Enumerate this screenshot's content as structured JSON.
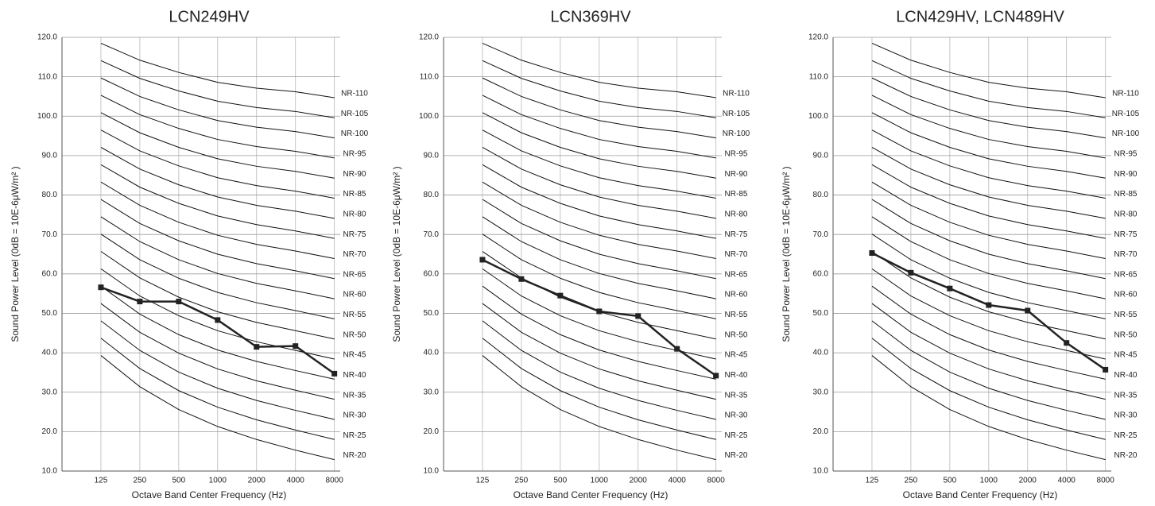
{
  "chart_data": [
    {
      "type": "line",
      "title": "LCN249HV",
      "x_label": "Octave Band Center Frequency (Hz)",
      "y_label": "Sound Power Level (0dB  = 10E-6μW/m² )",
      "categories": [
        "125",
        "250",
        "500",
        "1000",
        "2000",
        "4000",
        "8000"
      ],
      "values": [
        56.6,
        53,
        53,
        48.3,
        41.5,
        41.7,
        34.7
      ],
      "color": "#222222",
      "ylim": [
        10,
        120
      ],
      "yticks": [
        {
          "value": 10,
          "label": "10.0"
        },
        {
          "value": 20,
          "label": "20.0"
        },
        {
          "value": 30,
          "label": "30.0"
        },
        {
          "value": 40,
          "label": "40.0"
        },
        {
          "value": 50,
          "label": "50.0"
        },
        {
          "value": 60,
          "label": "60.0"
        },
        {
          "value": 70,
          "label": "70.0"
        },
        {
          "value": 80,
          "label": "80.0"
        },
        {
          "value": 90,
          "label": "90.0"
        },
        {
          "value": 100,
          "label": "100.0"
        },
        {
          "value": 110,
          "label": "110.0"
        },
        {
          "value": 120,
          "label": "120.0"
        }
      ],
      "grid": true,
      "series": [
        {
          "name": "NR-20",
          "color": "#111111",
          "values": [
            39.3,
            31.4,
            25.6,
            21.3,
            18,
            15.3,
            12.9
          ]
        },
        {
          "name": "NR-25",
          "color": "#111111",
          "values": [
            43.7,
            36,
            30.4,
            26.2,
            23,
            20.4,
            18
          ]
        },
        {
          "name": "NR-30",
          "color": "#111111",
          "values": [
            48.1,
            40.6,
            35.1,
            31,
            27.9,
            25.4,
            23.1
          ]
        },
        {
          "name": "NR-35",
          "color": "#111111",
          "values": [
            52.5,
            45.2,
            39.9,
            35.9,
            32.9,
            30.5,
            28.2
          ]
        },
        {
          "name": "NR-40",
          "color": "#111111",
          "values": [
            56.9,
            49.8,
            44.6,
            40.7,
            37.8,
            35.5,
            33.3
          ]
        },
        {
          "name": "NR-45",
          "color": "#111111",
          "values": [
            61.3,
            54.4,
            49.4,
            45.6,
            42.8,
            40.6,
            38.4
          ]
        },
        {
          "name": "NR-50",
          "color": "#111111",
          "values": [
            65.7,
            59,
            54.1,
            50.4,
            47.7,
            45.6,
            43.5
          ]
        },
        {
          "name": "NR-55",
          "color": "#111111",
          "values": [
            70.1,
            63.6,
            58.9,
            55.3,
            52.7,
            50.7,
            48.6
          ]
        },
        {
          "name": "NR-60",
          "color": "#111111",
          "values": [
            74.5,
            68.2,
            63.6,
            60.1,
            57.6,
            55.7,
            53.7
          ]
        },
        {
          "name": "NR-65",
          "color": "#111111",
          "values": [
            78.9,
            72.8,
            68.4,
            65,
            62.6,
            60.8,
            58.8
          ]
        },
        {
          "name": "NR-70",
          "color": "#111111",
          "values": [
            83.3,
            77.4,
            73.1,
            69.8,
            67.5,
            65.8,
            63.9
          ]
        },
        {
          "name": "NR-75",
          "color": "#111111",
          "values": [
            87.7,
            82,
            77.9,
            74.7,
            72.5,
            70.9,
            69
          ]
        },
        {
          "name": "NR-80",
          "color": "#111111",
          "values": [
            92.1,
            86.6,
            82.6,
            79.5,
            77.4,
            75.9,
            74.1
          ]
        },
        {
          "name": "NR-85",
          "color": "#111111",
          "values": [
            96.5,
            91.2,
            87.4,
            84.4,
            82.4,
            81,
            79.2
          ]
        },
        {
          "name": "NR-90",
          "color": "#111111",
          "values": [
            100.9,
            95.8,
            92.1,
            89.2,
            87.3,
            86,
            84.3
          ]
        },
        {
          "name": "NR-95",
          "color": "#111111",
          "values": [
            105.3,
            100.4,
            96.9,
            94.1,
            92.3,
            91.1,
            89.4
          ]
        },
        {
          "name": "NR-100",
          "color": "#111111",
          "values": [
            109.7,
            105,
            101.6,
            98.9,
            97.2,
            96.1,
            94.5
          ]
        },
        {
          "name": "NR-105",
          "color": "#111111",
          "values": [
            114.1,
            109.6,
            106.4,
            103.8,
            102.2,
            101.2,
            99.6
          ]
        },
        {
          "name": "NR-110",
          "color": "#111111",
          "values": [
            118.5,
            114.2,
            111.1,
            108.6,
            107.1,
            106.2,
            104.7
          ]
        }
      ]
    },
    {
      "type": "line",
      "title": "LCN369HV",
      "x_label": "Octave Band Center Frequency (Hz)",
      "y_label": "Sound Power Level (0dB  = 10E-6μW/m² )",
      "categories": [
        "125",
        "250",
        "500",
        "1000",
        "2000",
        "4000",
        "8000"
      ],
      "values": [
        63.6,
        58.7,
        54.5,
        50.5,
        49.3,
        41,
        34.2
      ],
      "color": "#222222",
      "ylim": [
        10,
        120
      ],
      "yticks": [
        {
          "value": 10,
          "label": "10.0"
        },
        {
          "value": 20,
          "label": "20.0"
        },
        {
          "value": 30,
          "label": "30.0"
        },
        {
          "value": 40,
          "label": "40.0"
        },
        {
          "value": 50,
          "label": "50.0"
        },
        {
          "value": 60,
          "label": "60.0"
        },
        {
          "value": 70,
          "label": "70.0"
        },
        {
          "value": 80,
          "label": "80.0"
        },
        {
          "value": 90,
          "label": "90.0"
        },
        {
          "value": 100,
          "label": "100.0"
        },
        {
          "value": 110,
          "label": "110.0"
        },
        {
          "value": 120,
          "label": "120.0"
        }
      ],
      "grid": true,
      "series": [
        {
          "name": "NR-20",
          "color": "#111111",
          "values": [
            39.3,
            31.4,
            25.6,
            21.3,
            18,
            15.3,
            12.9
          ]
        },
        {
          "name": "NR-25",
          "color": "#111111",
          "values": [
            43.7,
            36,
            30.4,
            26.2,
            23,
            20.4,
            18
          ]
        },
        {
          "name": "NR-30",
          "color": "#111111",
          "values": [
            48.1,
            40.6,
            35.1,
            31,
            27.9,
            25.4,
            23.1
          ]
        },
        {
          "name": "NR-35",
          "color": "#111111",
          "values": [
            52.5,
            45.2,
            39.9,
            35.9,
            32.9,
            30.5,
            28.2
          ]
        },
        {
          "name": "NR-40",
          "color": "#111111",
          "values": [
            56.9,
            49.8,
            44.6,
            40.7,
            37.8,
            35.5,
            33.3
          ]
        },
        {
          "name": "NR-45",
          "color": "#111111",
          "values": [
            61.3,
            54.4,
            49.4,
            45.6,
            42.8,
            40.6,
            38.4
          ]
        },
        {
          "name": "NR-50",
          "color": "#111111",
          "values": [
            65.7,
            59,
            54.1,
            50.4,
            47.7,
            45.6,
            43.5
          ]
        },
        {
          "name": "NR-55",
          "color": "#111111",
          "values": [
            70.1,
            63.6,
            58.9,
            55.3,
            52.7,
            50.7,
            48.6
          ]
        },
        {
          "name": "NR-60",
          "color": "#111111",
          "values": [
            74.5,
            68.2,
            63.6,
            60.1,
            57.6,
            55.7,
            53.7
          ]
        },
        {
          "name": "NR-65",
          "color": "#111111",
          "values": [
            78.9,
            72.8,
            68.4,
            65,
            62.6,
            60.8,
            58.8
          ]
        },
        {
          "name": "NR-70",
          "color": "#111111",
          "values": [
            83.3,
            77.4,
            73.1,
            69.8,
            67.5,
            65.8,
            63.9
          ]
        },
        {
          "name": "NR-75",
          "color": "#111111",
          "values": [
            87.7,
            82,
            77.9,
            74.7,
            72.5,
            70.9,
            69
          ]
        },
        {
          "name": "NR-80",
          "color": "#111111",
          "values": [
            92.1,
            86.6,
            82.6,
            79.5,
            77.4,
            75.9,
            74.1
          ]
        },
        {
          "name": "NR-85",
          "color": "#111111",
          "values": [
            96.5,
            91.2,
            87.4,
            84.4,
            82.4,
            81,
            79.2
          ]
        },
        {
          "name": "NR-90",
          "color": "#111111",
          "values": [
            100.9,
            95.8,
            92.1,
            89.2,
            87.3,
            86,
            84.3
          ]
        },
        {
          "name": "NR-95",
          "color": "#111111",
          "values": [
            105.3,
            100.4,
            96.9,
            94.1,
            92.3,
            91.1,
            89.4
          ]
        },
        {
          "name": "NR-100",
          "color": "#111111",
          "values": [
            109.7,
            105,
            101.6,
            98.9,
            97.2,
            96.1,
            94.5
          ]
        },
        {
          "name": "NR-105",
          "color": "#111111",
          "values": [
            114.1,
            109.6,
            106.4,
            103.8,
            102.2,
            101.2,
            99.6
          ]
        },
        {
          "name": "NR-110",
          "color": "#111111",
          "values": [
            118.5,
            114.2,
            111.1,
            108.6,
            107.1,
            106.2,
            104.7
          ]
        }
      ]
    },
    {
      "type": "line",
      "title": "LCN429HV, LCN489HV",
      "x_label": "Octave Band Center Frequency (Hz)",
      "y_label": "Sound Power Level (0dB  = 10E-6μW/m² )",
      "categories": [
        "125",
        "250",
        "500",
        "1000",
        "2000",
        "4000",
        "8000"
      ],
      "values": [
        65.3,
        60.3,
        56.3,
        52.1,
        50.7,
        42.5,
        35.7
      ],
      "color": "#222222",
      "ylim": [
        10,
        120
      ],
      "yticks": [
        {
          "value": 10,
          "label": "10.0"
        },
        {
          "value": 20,
          "label": "20.0"
        },
        {
          "value": 30,
          "label": "30.0"
        },
        {
          "value": 40,
          "label": "40.0"
        },
        {
          "value": 50,
          "label": "50.0"
        },
        {
          "value": 60,
          "label": "60.0"
        },
        {
          "value": 70,
          "label": "70.0"
        },
        {
          "value": 80,
          "label": "80.0"
        },
        {
          "value": 90,
          "label": "90.0"
        },
        {
          "value": 100,
          "label": "100.0"
        },
        {
          "value": 110,
          "label": "110.0"
        },
        {
          "value": 120,
          "label": "120.0"
        }
      ],
      "grid": true,
      "series": [
        {
          "name": "NR-20",
          "color": "#111111",
          "values": [
            39.3,
            31.4,
            25.6,
            21.3,
            18,
            15.3,
            12.9
          ]
        },
        {
          "name": "NR-25",
          "color": "#111111",
          "values": [
            43.7,
            36,
            30.4,
            26.2,
            23,
            20.4,
            18
          ]
        },
        {
          "name": "NR-30",
          "color": "#111111",
          "values": [
            48.1,
            40.6,
            35.1,
            31,
            27.9,
            25.4,
            23.1
          ]
        },
        {
          "name": "NR-35",
          "color": "#111111",
          "values": [
            52.5,
            45.2,
            39.9,
            35.9,
            32.9,
            30.5,
            28.2
          ]
        },
        {
          "name": "NR-40",
          "color": "#111111",
          "values": [
            56.9,
            49.8,
            44.6,
            40.7,
            37.8,
            35.5,
            33.3
          ]
        },
        {
          "name": "NR-45",
          "color": "#111111",
          "values": [
            61.3,
            54.4,
            49.4,
            45.6,
            42.8,
            40.6,
            38.4
          ]
        },
        {
          "name": "NR-50",
          "color": "#111111",
          "values": [
            65.7,
            59,
            54.1,
            50.4,
            47.7,
            45.6,
            43.5
          ]
        },
        {
          "name": "NR-55",
          "color": "#111111",
          "values": [
            70.1,
            63.6,
            58.9,
            55.3,
            52.7,
            50.7,
            48.6
          ]
        },
        {
          "name": "NR-60",
          "color": "#111111",
          "values": [
            74.5,
            68.2,
            63.6,
            60.1,
            57.6,
            55.7,
            53.7
          ]
        },
        {
          "name": "NR-65",
          "color": "#111111",
          "values": [
            78.9,
            72.8,
            68.4,
            65,
            62.6,
            60.8,
            58.8
          ]
        },
        {
          "name": "NR-70",
          "color": "#111111",
          "values": [
            83.3,
            77.4,
            73.1,
            69.8,
            67.5,
            65.8,
            63.9
          ]
        },
        {
          "name": "NR-75",
          "color": "#111111",
          "values": [
            87.7,
            82,
            77.9,
            74.7,
            72.5,
            70.9,
            69
          ]
        },
        {
          "name": "NR-80",
          "color": "#111111",
          "values": [
            92.1,
            86.6,
            82.6,
            79.5,
            77.4,
            75.9,
            74.1
          ]
        },
        {
          "name": "NR-85",
          "color": "#111111",
          "values": [
            96.5,
            91.2,
            87.4,
            84.4,
            82.4,
            81,
            79.2
          ]
        },
        {
          "name": "NR-90",
          "color": "#111111",
          "values": [
            100.9,
            95.8,
            92.1,
            89.2,
            87.3,
            86,
            84.3
          ]
        },
        {
          "name": "NR-95",
          "color": "#111111",
          "values": [
            105.3,
            100.4,
            96.9,
            94.1,
            92.3,
            91.1,
            89.4
          ]
        },
        {
          "name": "NR-100",
          "color": "#111111",
          "values": [
            109.7,
            105,
            101.6,
            98.9,
            97.2,
            96.1,
            94.5
          ]
        },
        {
          "name": "NR-105",
          "color": "#111111",
          "values": [
            114.1,
            109.6,
            106.4,
            103.8,
            102.2,
            101.2,
            99.6
          ]
        },
        {
          "name": "NR-110",
          "color": "#111111",
          "values": [
            118.5,
            114.2,
            111.1,
            108.6,
            107.1,
            106.2,
            104.7
          ]
        }
      ]
    }
  ]
}
